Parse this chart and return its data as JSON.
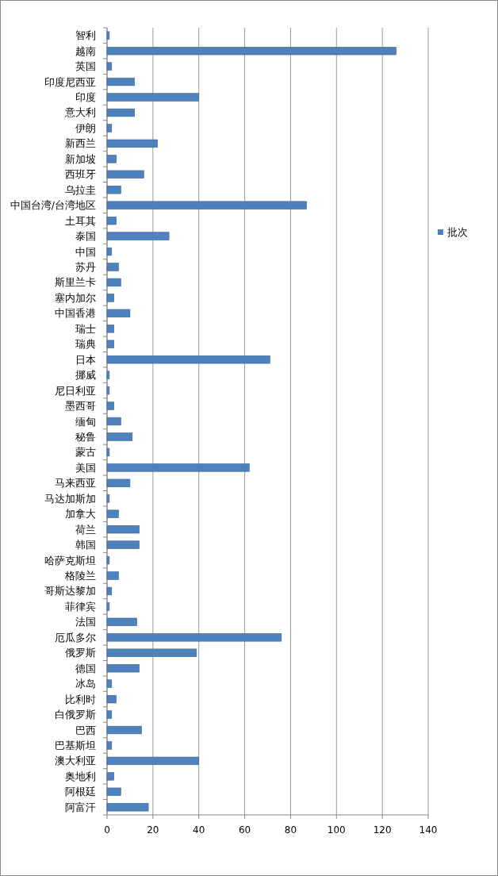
{
  "chart_data": {
    "type": "bar",
    "orientation": "horizontal",
    "categories": [
      "智利",
      "越南",
      "英国",
      "印度尼西亚",
      "印度",
      "意大利",
      "伊朗",
      "新西兰",
      "新加坡",
      "西班牙",
      "乌拉圭",
      "中国台湾/台湾地区",
      "土耳其",
      "泰国",
      "中国",
      "苏丹",
      "斯里兰卡",
      "塞内加尔",
      "中国香港",
      "瑞士",
      "瑞典",
      "日本",
      "挪威",
      "尼日利亚",
      "墨西哥",
      "缅甸",
      "秘鲁",
      "蒙古",
      "美国",
      "马来西亚",
      "马达加斯加",
      "加拿大",
      "荷兰",
      "韩国",
      "哈萨克斯坦",
      "格陵兰",
      "哥斯达黎加",
      "菲律宾",
      "法国",
      "厄瓜多尔",
      "俄罗斯",
      "德国",
      "冰岛",
      "比利时",
      "白俄罗斯",
      "巴西",
      "巴基斯坦",
      "澳大利亚",
      "奥地利",
      "阿根廷",
      "阿富汗"
    ],
    "series": [
      {
        "name": "批次",
        "color": "#4f81bd",
        "values": [
          1,
          126,
          2,
          12,
          40,
          12,
          2,
          22,
          4,
          16,
          6,
          87,
          4,
          27,
          2,
          5,
          6,
          3,
          10,
          3,
          3,
          71,
          1,
          1,
          3,
          6,
          11,
          1,
          62,
          10,
          1,
          5,
          14,
          14,
          1,
          5,
          2,
          1,
          13,
          76,
          39,
          14,
          2,
          4,
          2,
          15,
          2,
          40,
          3,
          6,
          18
        ]
      }
    ],
    "xlim": [
      0,
      140
    ],
    "xticks": [
      0,
      20,
      40,
      60,
      80,
      100,
      120,
      140
    ],
    "grid": "x",
    "legend": "right"
  }
}
